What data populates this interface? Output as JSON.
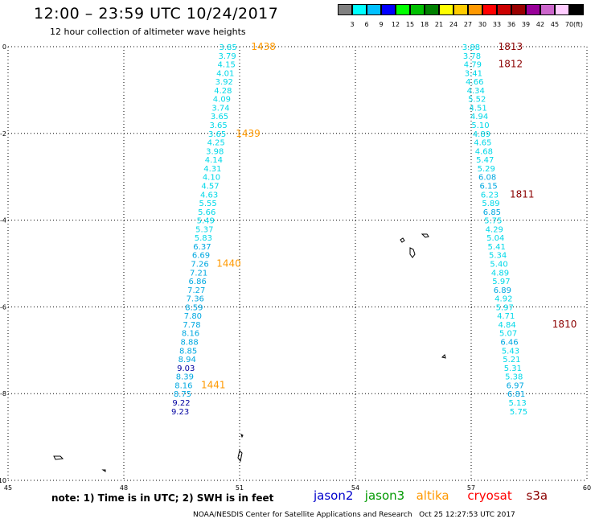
{
  "header": {
    "title": "12:00 – 23:59 UTC 10/24/2017",
    "subtitle": "12 hour collection of altimeter wave heights"
  },
  "legend": {
    "unit": "(ft)",
    "bins": [
      {
        "label": "3",
        "color": "#808080"
      },
      {
        "label": "6",
        "color": "#00ffff"
      },
      {
        "label": "9",
        "color": "#00c0ff"
      },
      {
        "label": "12",
        "color": "#0000ff"
      },
      {
        "label": "15",
        "color": "#00ff00"
      },
      {
        "label": "18",
        "color": "#00c000"
      },
      {
        "label": "21",
        "color": "#008000"
      },
      {
        "label": "24",
        "color": "#ffff00"
      },
      {
        "label": "27",
        "color": "#ffcc00"
      },
      {
        "label": "30",
        "color": "#ff9900"
      },
      {
        "label": "33",
        "color": "#ff0000"
      },
      {
        "label": "36",
        "color": "#cc0000"
      },
      {
        "label": "39",
        "color": "#990000"
      },
      {
        "label": "42",
        "color": "#990099"
      },
      {
        "label": "45",
        "color": "#cc66cc"
      },
      {
        "label": "70",
        "color": "#ffccff"
      },
      {
        "label": "",
        "color": "#000000"
      }
    ]
  },
  "map": {
    "lon_ticks": [
      "45",
      "48",
      "51",
      "54",
      "57",
      "60"
    ],
    "lat_ticks": [
      "0",
      "-2",
      "-4",
      "-6",
      "-8",
      "-10"
    ],
    "colors": {
      "cyan": "#00d8e8",
      "lightblue": "#00a8e0",
      "darkblue": "#0000a0",
      "orange": "#ff9900",
      "darkred": "#8b0000"
    },
    "tracks": [
      {
        "name": "altika",
        "points": [
          {
            "lon": 50.7,
            "lat": 0.0,
            "v": "3.85",
            "c": "cyan"
          },
          {
            "lon": 50.68,
            "lat": -0.2,
            "v": "3.79",
            "c": "cyan"
          },
          {
            "lon": 50.66,
            "lat": -0.4,
            "v": "4.15",
            "c": "cyan"
          },
          {
            "lon": 50.63,
            "lat": -0.6,
            "v": "4.01",
            "c": "cyan"
          },
          {
            "lon": 50.6,
            "lat": -0.8,
            "v": "3.92",
            "c": "cyan"
          },
          {
            "lon": 50.57,
            "lat": -1.0,
            "v": "4.28",
            "c": "cyan"
          },
          {
            "lon": 50.54,
            "lat": -1.2,
            "v": "4.09",
            "c": "cyan"
          },
          {
            "lon": 50.51,
            "lat": -1.4,
            "v": "3.74",
            "c": "cyan"
          },
          {
            "lon": 50.48,
            "lat": -1.6,
            "v": "3.65",
            "c": "cyan"
          },
          {
            "lon": 50.45,
            "lat": -1.8,
            "v": "3.65",
            "c": "cyan"
          },
          {
            "lon": 50.42,
            "lat": -2.0,
            "v": "3.65",
            "c": "cyan"
          },
          {
            "lon": 50.39,
            "lat": -2.2,
            "v": "4.25",
            "c": "cyan"
          },
          {
            "lon": 50.36,
            "lat": -2.4,
            "v": "3.98",
            "c": "cyan"
          },
          {
            "lon": 50.33,
            "lat": -2.6,
            "v": "4.14",
            "c": "cyan"
          },
          {
            "lon": 50.3,
            "lat": -2.8,
            "v": "4.31",
            "c": "cyan"
          },
          {
            "lon": 50.27,
            "lat": -3.0,
            "v": "4.10",
            "c": "cyan"
          },
          {
            "lon": 50.24,
            "lat": -3.2,
            "v": "4.57",
            "c": "cyan"
          },
          {
            "lon": 50.21,
            "lat": -3.4,
            "v": "4.63",
            "c": "cyan"
          },
          {
            "lon": 50.18,
            "lat": -3.6,
            "v": "5.55",
            "c": "cyan"
          },
          {
            "lon": 50.15,
            "lat": -3.8,
            "v": "5.66",
            "c": "cyan"
          },
          {
            "lon": 50.12,
            "lat": -4.0,
            "v": "5.49",
            "c": "cyan"
          },
          {
            "lon": 50.09,
            "lat": -4.2,
            "v": "5.37",
            "c": "cyan"
          },
          {
            "lon": 50.06,
            "lat": -4.4,
            "v": "5.83",
            "c": "cyan"
          },
          {
            "lon": 50.03,
            "lat": -4.6,
            "v": "6.37",
            "c": "lightblue"
          },
          {
            "lon": 50.0,
            "lat": -4.8,
            "v": "6.69",
            "c": "lightblue"
          },
          {
            "lon": 49.97,
            "lat": -5.0,
            "v": "7.26",
            "c": "lightblue"
          },
          {
            "lon": 49.94,
            "lat": -5.2,
            "v": "7.21",
            "c": "lightblue"
          },
          {
            "lon": 49.91,
            "lat": -5.4,
            "v": "6.86",
            "c": "lightblue"
          },
          {
            "lon": 49.88,
            "lat": -5.6,
            "v": "7.27",
            "c": "lightblue"
          },
          {
            "lon": 49.85,
            "lat": -5.8,
            "v": "7.36",
            "c": "lightblue"
          },
          {
            "lon": 49.82,
            "lat": -6.0,
            "v": "8.59",
            "c": "lightblue"
          },
          {
            "lon": 49.79,
            "lat": -6.2,
            "v": "7.80",
            "c": "lightblue"
          },
          {
            "lon": 49.76,
            "lat": -6.4,
            "v": "7.78",
            "c": "lightblue"
          },
          {
            "lon": 49.73,
            "lat": -6.6,
            "v": "8.16",
            "c": "lightblue"
          },
          {
            "lon": 49.7,
            "lat": -6.8,
            "v": "8.88",
            "c": "lightblue"
          },
          {
            "lon": 49.67,
            "lat": -7.0,
            "v": "8.85",
            "c": "lightblue"
          },
          {
            "lon": 49.64,
            "lat": -7.2,
            "v": "8.94",
            "c": "lightblue"
          },
          {
            "lon": 49.61,
            "lat": -7.4,
            "v": "9.03",
            "c": "darkblue"
          },
          {
            "lon": 49.58,
            "lat": -7.6,
            "v": "8.39",
            "c": "lightblue"
          },
          {
            "lon": 49.55,
            "lat": -7.8,
            "v": "8.16",
            "c": "lightblue"
          },
          {
            "lon": 49.52,
            "lat": -8.0,
            "v": "8.75",
            "c": "lightblue"
          },
          {
            "lon": 49.49,
            "lat": -8.2,
            "v": "9.22",
            "c": "darkblue"
          },
          {
            "lon": 49.46,
            "lat": -8.4,
            "v": "9.23",
            "c": "darkblue"
          }
        ]
      },
      {
        "name": "cryosat",
        "points": [
          {
            "lon": 57.0,
            "lat": 0.0,
            "v": "3.88",
            "c": "cyan"
          },
          {
            "lon": 57.02,
            "lat": -0.2,
            "v": "3.78",
            "c": "cyan"
          },
          {
            "lon": 57.04,
            "lat": -0.4,
            "v": "4.79",
            "c": "cyan"
          },
          {
            "lon": 57.06,
            "lat": -0.6,
            "v": "3.41",
            "c": "cyan"
          },
          {
            "lon": 57.09,
            "lat": -0.8,
            "v": "4.66",
            "c": "cyan"
          },
          {
            "lon": 57.12,
            "lat": -1.0,
            "v": "4.34",
            "c": "cyan"
          },
          {
            "lon": 57.15,
            "lat": -1.2,
            "v": "5.52",
            "c": "cyan"
          },
          {
            "lon": 57.18,
            "lat": -1.4,
            "v": "4.51",
            "c": "cyan"
          },
          {
            "lon": 57.21,
            "lat": -1.6,
            "v": "4.94",
            "c": "cyan"
          },
          {
            "lon": 57.24,
            "lat": -1.8,
            "v": "5.10",
            "c": "cyan"
          },
          {
            "lon": 57.27,
            "lat": -2.0,
            "v": "4.89",
            "c": "cyan"
          },
          {
            "lon": 57.3,
            "lat": -2.2,
            "v": "4.65",
            "c": "cyan"
          },
          {
            "lon": 57.33,
            "lat": -2.4,
            "v": "4.68",
            "c": "cyan"
          },
          {
            "lon": 57.36,
            "lat": -2.6,
            "v": "5.47",
            "c": "cyan"
          },
          {
            "lon": 57.39,
            "lat": -2.8,
            "v": "5.29",
            "c": "cyan"
          },
          {
            "lon": 57.42,
            "lat": -3.0,
            "v": "6.08",
            "c": "lightblue"
          },
          {
            "lon": 57.45,
            "lat": -3.2,
            "v": "6.15",
            "c": "lightblue"
          },
          {
            "lon": 57.48,
            "lat": -3.4,
            "v": "6.23",
            "c": "cyan"
          },
          {
            "lon": 57.51,
            "lat": -3.6,
            "v": "5.89",
            "c": "cyan"
          },
          {
            "lon": 57.54,
            "lat": -3.8,
            "v": "6.85",
            "c": "lightblue"
          },
          {
            "lon": 57.57,
            "lat": -4.0,
            "v": "5.75",
            "c": "cyan"
          },
          {
            "lon": 57.6,
            "lat": -4.2,
            "v": "4.29",
            "c": "cyan"
          },
          {
            "lon": 57.63,
            "lat": -4.4,
            "v": "5.04",
            "c": "cyan"
          },
          {
            "lon": 57.66,
            "lat": -4.6,
            "v": "5.41",
            "c": "cyan"
          },
          {
            "lon": 57.69,
            "lat": -4.8,
            "v": "5.34",
            "c": "cyan"
          },
          {
            "lon": 57.72,
            "lat": -5.0,
            "v": "5.40",
            "c": "cyan"
          },
          {
            "lon": 57.75,
            "lat": -5.2,
            "v": "4.89",
            "c": "cyan"
          },
          {
            "lon": 57.78,
            "lat": -5.4,
            "v": "5.97",
            "c": "cyan"
          },
          {
            "lon": 57.81,
            "lat": -5.6,
            "v": "6.89",
            "c": "lightblue"
          },
          {
            "lon": 57.84,
            "lat": -5.8,
            "v": "4.92",
            "c": "cyan"
          },
          {
            "lon": 57.87,
            "lat": -6.0,
            "v": "5.97",
            "c": "cyan"
          },
          {
            "lon": 57.9,
            "lat": -6.2,
            "v": "4.71",
            "c": "cyan"
          },
          {
            "lon": 57.93,
            "lat": -6.4,
            "v": "4.84",
            "c": "cyan"
          },
          {
            "lon": 57.96,
            "lat": -6.6,
            "v": "5.07",
            "c": "cyan"
          },
          {
            "lon": 57.99,
            "lat": -6.8,
            "v": "6.46",
            "c": "lightblue"
          },
          {
            "lon": 58.02,
            "lat": -7.0,
            "v": "5.43",
            "c": "cyan"
          },
          {
            "lon": 58.05,
            "lat": -7.2,
            "v": "5.21",
            "c": "cyan"
          },
          {
            "lon": 58.08,
            "lat": -7.4,
            "v": "5.31",
            "c": "cyan"
          },
          {
            "lon": 58.11,
            "lat": -7.6,
            "v": "5.38",
            "c": "cyan"
          },
          {
            "lon": 58.14,
            "lat": -7.8,
            "v": "6.97",
            "c": "lightblue"
          },
          {
            "lon": 58.17,
            "lat": -8.0,
            "v": "6.81",
            "c": "lightblue"
          },
          {
            "lon": 58.2,
            "lat": -8.2,
            "v": "5.13",
            "c": "cyan"
          },
          {
            "lon": 58.23,
            "lat": -8.4,
            "v": "5.75",
            "c": "cyan"
          }
        ]
      }
    ],
    "times": [
      {
        "text": "1438",
        "lon": 51.3,
        "lat": 0.0,
        "c": "orange"
      },
      {
        "text": "1439",
        "lon": 50.9,
        "lat": -2.0,
        "c": "orange"
      },
      {
        "text": "1440",
        "lon": 50.4,
        "lat": -5.0,
        "c": "orange"
      },
      {
        "text": "1441",
        "lon": 50.0,
        "lat": -7.8,
        "c": "orange"
      },
      {
        "text": "1813",
        "lon": 57.7,
        "lat": 0.0,
        "c": "darkred"
      },
      {
        "text": "1812",
        "lon": 57.7,
        "lat": -0.4,
        "c": "darkred"
      },
      {
        "text": "1811",
        "lon": 58.0,
        "lat": -3.4,
        "c": "darkred"
      },
      {
        "text": "1810",
        "lon": 59.1,
        "lat": -6.4,
        "c": "darkred"
      }
    ]
  },
  "note": "note: 1) Time is in UTC; 2) SWH is in feet",
  "satellites": [
    {
      "name": "jason2",
      "color": "#0000cc"
    },
    {
      "name": "jason3",
      "color": "#009900"
    },
    {
      "name": "altika",
      "color": "#ff9900"
    },
    {
      "name": "cryosat",
      "color": "#ff0000"
    },
    {
      "name": "s3a",
      "color": "#8b0000"
    }
  ],
  "footer": "NOAA/NESDIS Center for Satellite Applications and Research   Oct 25 12:27:53 UTC 2017"
}
